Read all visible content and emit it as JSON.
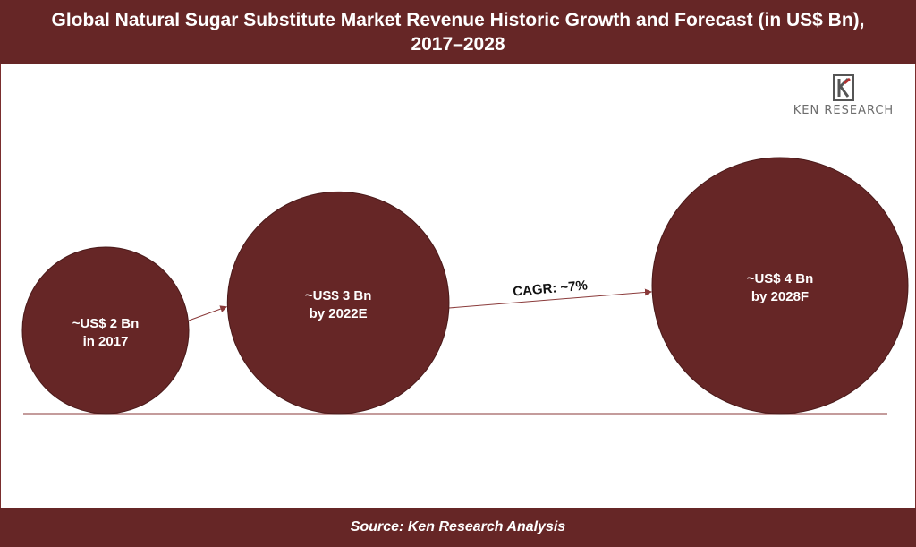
{
  "header": {
    "title_line1": "Global Natural Sugar Substitute Market Revenue Historic Growth and Forecast (in US$ Bn),",
    "title_line2": "2017–2028"
  },
  "logo": {
    "text": "KEN RESEARCH",
    "icon": "ken-research-logo-icon"
  },
  "footer": {
    "source": "Source: Ken Research Analysis"
  },
  "colors": {
    "bubble": "#662626",
    "bubble_stroke": "#4a1a1a",
    "band": "#662626",
    "arrow": "#8a3a3a",
    "baseline": "#8a3a3a"
  },
  "chart_data": {
    "type": "bubble",
    "title": "Global Natural Sugar Substitute Market Revenue Historic Growth and Forecast (in US$ Bn), 2017–2028",
    "points": [
      {
        "year": "2017",
        "value": 2,
        "label_line1": "~US$ 2 Bn",
        "label_line2": "in 2017"
      },
      {
        "year": "2022E",
        "value": 3,
        "label_line1": "~US$ 3 Bn",
        "label_line2": "by 2022E"
      },
      {
        "year": "2028F",
        "value": 4,
        "label_line1": "~US$ 4 Bn",
        "label_line2": "by 2028F"
      }
    ],
    "annotations": [
      {
        "between": [
          "2022E",
          "2028F"
        ],
        "text": "CAGR: ~7%"
      }
    ]
  }
}
